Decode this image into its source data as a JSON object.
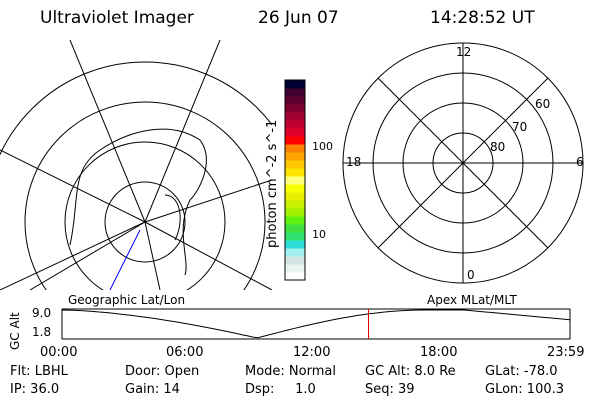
{
  "header": {
    "title": "Ultraviolet Imager",
    "date": "26 Jun 07",
    "time": "14:28:52 UT"
  },
  "colorbar": {
    "label": "photon cm^-2 s^-1",
    "ticks": [
      "100",
      "10"
    ],
    "colors": [
      "#ffffff",
      "#e8f4ee",
      "#d4e4e4",
      "#a0f0f0",
      "#30e0d8",
      "#30e070",
      "#40e040",
      "#60f010",
      "#a0f000",
      "#c8f000",
      "#e8f000",
      "#f4ff00",
      "#ffff80",
      "#ffe400",
      "#ffc800",
      "#ffa400",
      "#ff8000",
      "#ff0000",
      "#e0002a",
      "#c00030",
      "#a00032",
      "#800030",
      "#600030",
      "#400030",
      "#000030"
    ]
  },
  "polar": {
    "mlt_labels": [
      "12",
      "18",
      "6",
      "0"
    ],
    "lat_labels": [
      "60",
      "70",
      "80"
    ]
  },
  "timeline": {
    "left_label": "Geographic Lat/Lon",
    "right_label": "Apex MLat/MLT",
    "ylabel": "GC Alt",
    "yticks": [
      "9.0",
      "1.8"
    ],
    "xticks": [
      "00:00",
      "06:00",
      "12:00",
      "18:00",
      "23:59"
    ],
    "current_time_hours": 14.48,
    "marker_color": "#e00000"
  },
  "status": {
    "flt": "Flt: LBHL",
    "ip": "IP: 36.0",
    "door": "Door: Open",
    "gain": "Gain: 14",
    "mode": "Mode: Normal",
    "dsp": "Dsp:     1.0",
    "gcalt": "GC Alt: 8.0 Re",
    "seq": "Seq: 39",
    "glat": "GLat: -78.0",
    "glon": "GLon: 100.3"
  }
}
